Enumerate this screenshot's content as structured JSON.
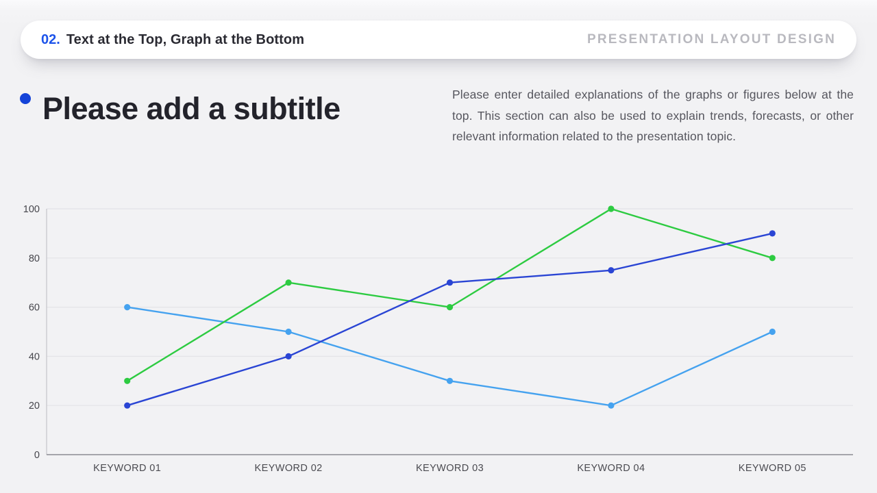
{
  "header": {
    "number": "02.",
    "title": "Text at the Top, Graph at the Bottom",
    "tagline": "PRESENTATION LAYOUT DESIGN"
  },
  "subtitle": {
    "title": "Please add a subtitle",
    "bullet_color": "#1443d8"
  },
  "description": "Please enter detailed explanations of the graphs or figures below at the top. This section can also be used to explain trends, forecasts, or other relevant information related to the presentation topic.",
  "colors": {
    "accent_blue": "#1c53ea",
    "title_text": "#23232b",
    "body_text": "#56565e",
    "tagline_gray": "#b9b9bf",
    "background": "#f2f2f4",
    "gridline": "#e3e3e7",
    "axis_bottom": "#8b8b92",
    "axis_left": "#cacad0"
  },
  "chart_data": {
    "type": "line",
    "categories": [
      "KEYWORD 01",
      "KEYWORD 02",
      "KEYWORD 03",
      "KEYWORD 04",
      "KEYWORD 05"
    ],
    "series": [
      {
        "name": "skyblue-series",
        "color": "#45a2ef",
        "values": [
          60,
          50,
          30,
          20,
          50
        ]
      },
      {
        "name": "green-series",
        "color": "#2dcb41",
        "values": [
          30,
          70,
          60,
          100,
          80
        ]
      },
      {
        "name": "blue-series",
        "color": "#2a45d4",
        "values": [
          20,
          40,
          70,
          75,
          90
        ]
      }
    ],
    "title": "",
    "xlabel": "",
    "ylabel": "",
    "ylim": [
      0,
      100
    ],
    "yticks": [
      0,
      20,
      40,
      60,
      80,
      100
    ],
    "grid": "horizontal",
    "legend_position": "none"
  }
}
